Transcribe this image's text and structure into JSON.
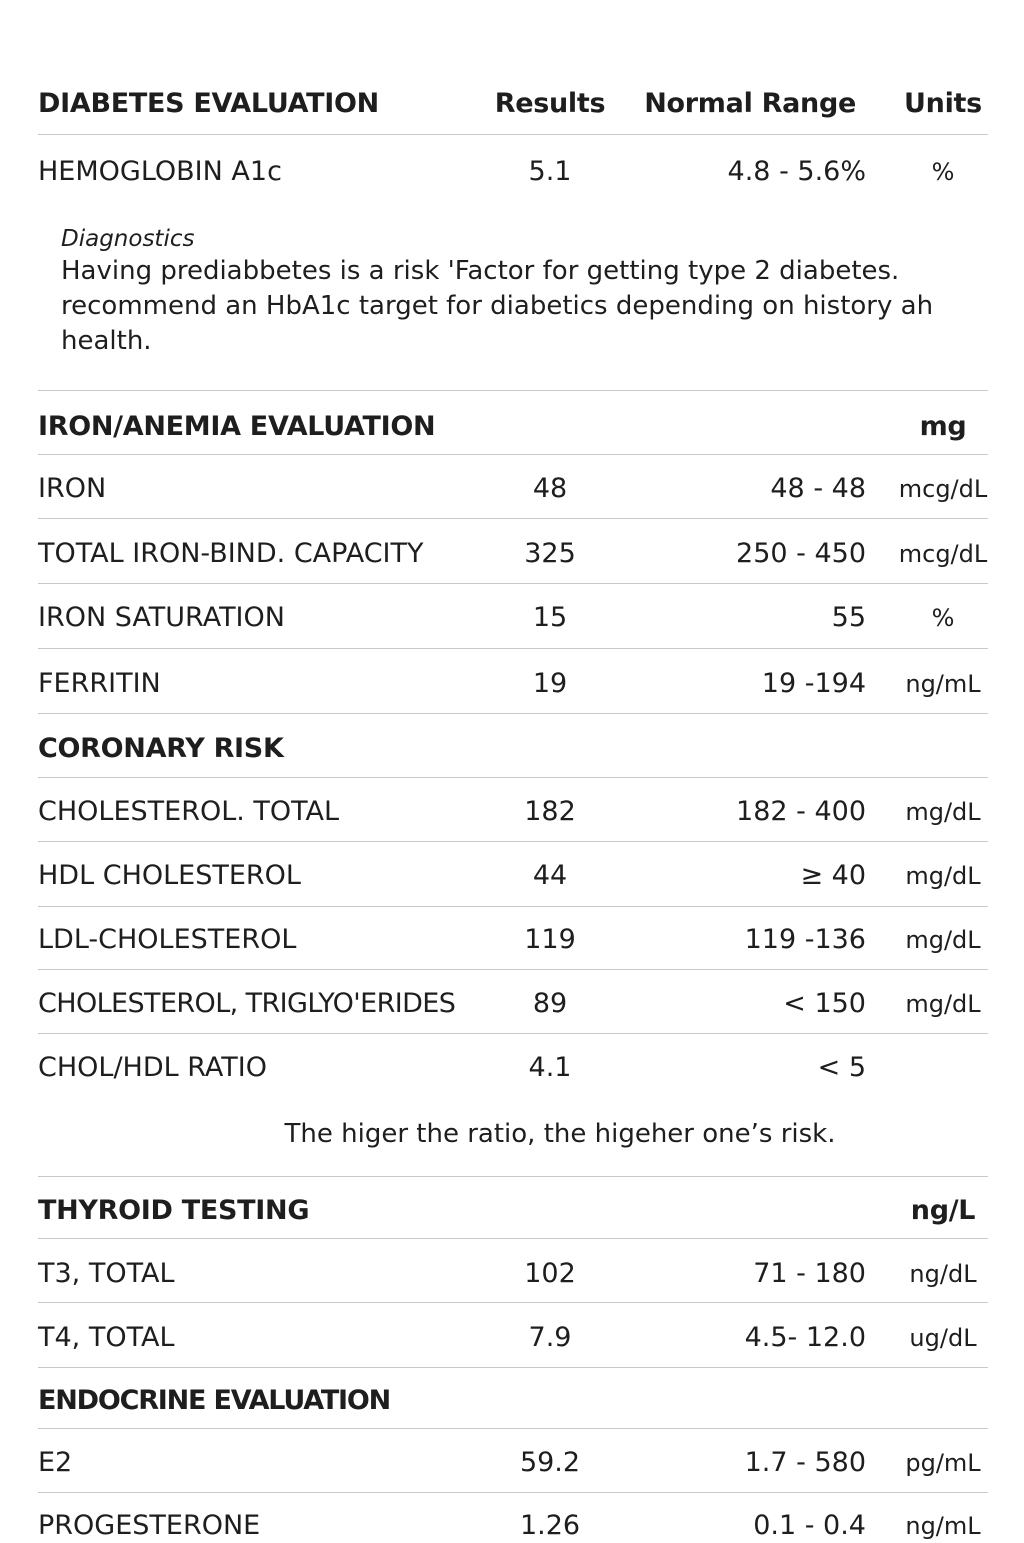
{
  "diabetes": {
    "title": "DIABETES EVALUATION",
    "col_results": "Results",
    "col_range": "Normal Range",
    "col_units": "Units",
    "rows": [
      {
        "name": "HEMOGLOBIN A1c",
        "result": "5.1",
        "range": "4.8 - 5.6%",
        "unit": "%"
      }
    ],
    "diagnostics_label": "Diagnostics",
    "diagnostics_line1": "Having prediabbetes is a risk 'Factor for getting type 2 diabetes.",
    "diagnostics_line2": "recommend an HbA1c target for diabetics depending on history ah",
    "diagnostics_line3": "health."
  },
  "iron": {
    "title": "IRON/ANEMIA EVALUATION",
    "unit_header": "mg",
    "rows": [
      {
        "name": "IRON",
        "result": "48",
        "range": "48 -  48",
        "unit": "mcg/dL"
      },
      {
        "name": "TOTAL IRON-BIND. CAPACITY",
        "result": "325",
        "range": "250 - 450",
        "unit": "mcg/dL"
      },
      {
        "name": "IRON SATURATION",
        "result": "15",
        "range": "55",
        "unit": "%"
      },
      {
        "name": "FERRITIN",
        "result": "19",
        "range": "19 -194",
        "unit": "ng/mL"
      }
    ]
  },
  "coronary": {
    "title": "CORONARY RISK",
    "rows": [
      {
        "name": "CHOLESTEROL. TOTAL",
        "result": "182",
        "range": "182 - 400",
        "unit": "mg/dL"
      },
      {
        "name": "HDL CHOLESTEROL",
        "result": "44",
        "range": "≥ 40",
        "unit": "mg/dL"
      },
      {
        "name": "LDL-CHOLESTEROL",
        "result": "119",
        "range": "119 -136",
        "unit": "mg/dL"
      },
      {
        "name": "CHOLESTEROL, TRIGLYO'ERIDES",
        "result": "89",
        "range": "< 150",
        "unit": "mg/dL"
      },
      {
        "name": "CHOL/HDL RATIO",
        "result": "4.1",
        "range": "< 5",
        "unit": ""
      }
    ],
    "note": "The higer the ratio, the higeher one’s risk."
  },
  "thyroid": {
    "title": "THYROID TESTING",
    "unit_header": "ng/L",
    "rows": [
      {
        "name": "T3, TOTAL",
        "result": "102",
        "range": "71 - 180",
        "unit": "ng/dL"
      },
      {
        "name": "T4, TOTAL",
        "result": "7.9",
        "range": "4.5- 12.0",
        "unit": "ug/dL"
      }
    ]
  },
  "endocrine": {
    "title": "ENDOCRINE EVALUATION",
    "rows": [
      {
        "name": "E2",
        "result": "59.2",
        "range": "1.7 - 580",
        "unit": "pg/mL"
      },
      {
        "name": "PROGESTERONE",
        "result": "1.26",
        "range": "0.1 - 0.4",
        "unit": "ng/mL"
      }
    ]
  }
}
